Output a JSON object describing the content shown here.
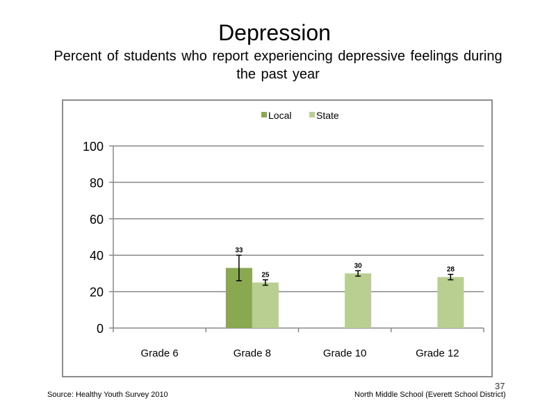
{
  "slide": {
    "title": "Depression",
    "subtitle": "Percent of students who report experiencing  depressive feelings during  the past year",
    "source": "Source: Healthy Youth Survey 2010",
    "school": "North Middle  School (Everett School District)",
    "slide_number": "37"
  },
  "chart_data": {
    "type": "bar",
    "categories": [
      "Grade 6",
      "Grade 8",
      "Grade 10",
      "Grade 12"
    ],
    "series": [
      {
        "name": "Local",
        "color": "#8aa84f",
        "values": [
          null,
          33,
          null,
          null
        ],
        "error": [
          null,
          7,
          null,
          null
        ]
      },
      {
        "name": "State",
        "color": "#b9cf92",
        "values": [
          null,
          25,
          30,
          28
        ],
        "error": [
          null,
          1.5,
          1.5,
          1.5
        ]
      }
    ],
    "ylim": [
      0,
      100
    ],
    "yticks": [
      0,
      20,
      40,
      60,
      80,
      100
    ],
    "grid": true,
    "legend": "top-center",
    "data_labels": true
  }
}
